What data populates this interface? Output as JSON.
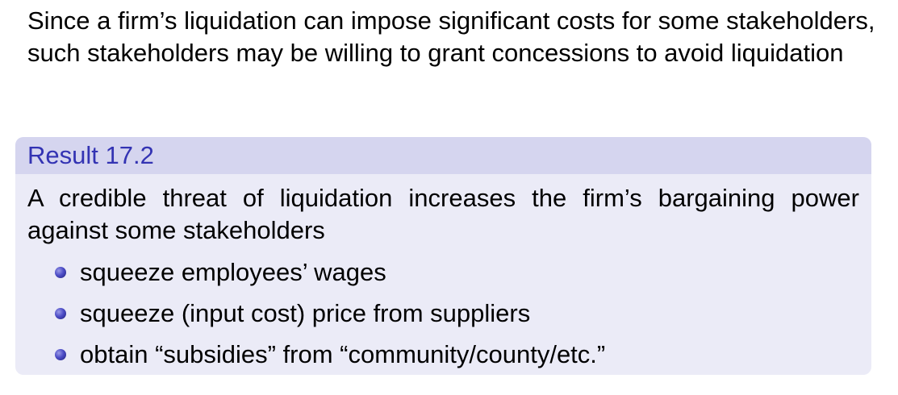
{
  "intro": {
    "text": "Since a firm’s liquidation can impose significant costs for some stakeholders, such stakeholders may be willing to grant concessions to avoid liquidation"
  },
  "result": {
    "title": "Result 17.2",
    "statement": "A credible threat of liquidation increases the firm’s bargaining power against some stakeholders",
    "items": [
      {
        "label": "squeeze employees’ wages"
      },
      {
        "label": "squeeze (input cost) price from suppliers"
      },
      {
        "label": "obtain “subsidies” from “community/county/etc.”"
      }
    ]
  },
  "colors": {
    "title_text": "#3333b3",
    "header_bg": "#d5d5ef",
    "body_bg": "#ebebf7",
    "bullet": "#4d4dc7"
  }
}
